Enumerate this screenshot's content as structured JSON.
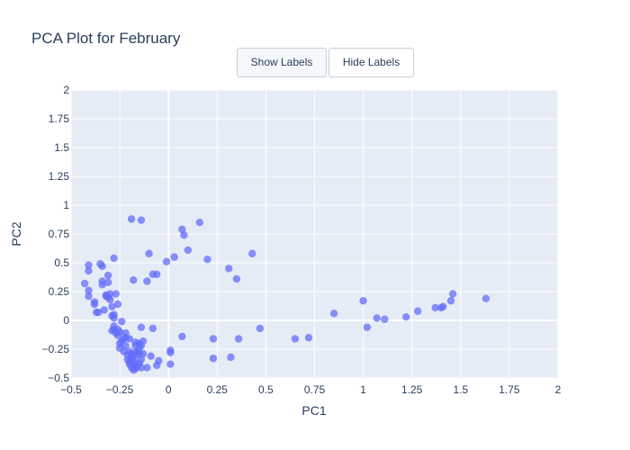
{
  "buttons": {
    "show_labels": "Show Labels",
    "hide_labels": "Hide Labels"
  },
  "colors": {
    "plot_background": "#e5ecf6",
    "grid": "#ffffff",
    "marker": "#636efa",
    "text": "#2a3f5f"
  },
  "chart_data": {
    "type": "scatter",
    "title": "PCA Plot for February",
    "xlabel": "PC1",
    "ylabel": "PC2",
    "xlim": [
      -0.5,
      2
    ],
    "ylim": [
      -0.5,
      2
    ],
    "grid": true,
    "x_ticks": [
      "−0.5",
      "−0.25",
      "0",
      "0.25",
      "0.5",
      "0.75",
      "1",
      "1.25",
      "1.5",
      "1.75",
      "2"
    ],
    "y_ticks": [
      "−0.5",
      "−0.25",
      "0",
      "0.25",
      "0.5",
      "0.75",
      "1",
      "1.25",
      "1.5",
      "1.75",
      "2"
    ],
    "series": [
      {
        "points": [
          [
            -0.43,
            0.32
          ],
          [
            -0.41,
            0.26
          ],
          [
            -0.41,
            0.21
          ],
          [
            -0.41,
            0.43
          ],
          [
            -0.41,
            0.48
          ],
          [
            -0.38,
            0.16
          ],
          [
            -0.38,
            0.14
          ],
          [
            -0.37,
            0.07
          ],
          [
            -0.36,
            0.07
          ],
          [
            -0.35,
            0.49
          ],
          [
            -0.34,
            0.47
          ],
          [
            -0.34,
            0.34
          ],
          [
            -0.34,
            0.31
          ],
          [
            -0.33,
            0.09
          ],
          [
            -0.32,
            0.21
          ],
          [
            -0.32,
            0.22
          ],
          [
            -0.31,
            0.39
          ],
          [
            -0.31,
            0.33
          ],
          [
            -0.31,
            0.2
          ],
          [
            -0.3,
            0.18
          ],
          [
            -0.3,
            0.23
          ],
          [
            -0.29,
            0.12
          ],
          [
            -0.29,
            0.04
          ],
          [
            -0.29,
            -0.09
          ],
          [
            -0.28,
            0.54
          ],
          [
            -0.28,
            0.05
          ],
          [
            -0.28,
            0.02
          ],
          [
            -0.28,
            -0.05
          ],
          [
            -0.28,
            -0.08
          ],
          [
            -0.27,
            0.23
          ],
          [
            -0.27,
            -0.11
          ],
          [
            -0.26,
            0.14
          ],
          [
            -0.26,
            -0.08
          ],
          [
            -0.26,
            -0.13
          ],
          [
            -0.25,
            -0.1
          ],
          [
            -0.25,
            -0.2
          ],
          [
            -0.25,
            -0.24
          ],
          [
            -0.24,
            -0.01
          ],
          [
            -0.24,
            -0.18
          ],
          [
            -0.23,
            -0.16
          ],
          [
            -0.23,
            -0.27
          ],
          [
            -0.22,
            -0.11
          ],
          [
            -0.22,
            -0.15
          ],
          [
            -0.22,
            -0.22
          ],
          [
            -0.21,
            -0.3
          ],
          [
            -0.21,
            -0.34
          ],
          [
            -0.2,
            -0.36
          ],
          [
            -0.2,
            -0.38
          ],
          [
            -0.2,
            -0.16
          ],
          [
            -0.2,
            -0.27
          ],
          [
            -0.19,
            -0.29
          ],
          [
            -0.19,
            -0.31
          ],
          [
            -0.19,
            -0.33
          ],
          [
            -0.19,
            -0.41
          ],
          [
            -0.18,
            -0.35
          ],
          [
            -0.18,
            -0.39
          ],
          [
            -0.18,
            -0.43
          ],
          [
            -0.17,
            -0.38
          ],
          [
            -0.17,
            -0.42
          ],
          [
            -0.17,
            -0.31
          ],
          [
            -0.17,
            -0.28
          ],
          [
            -0.17,
            -0.22
          ],
          [
            -0.17,
            -0.19
          ],
          [
            -0.16,
            -0.4
          ],
          [
            -0.16,
            -0.27
          ],
          [
            -0.15,
            -0.37
          ],
          [
            -0.15,
            -0.29
          ],
          [
            -0.15,
            -0.24
          ],
          [
            -0.15,
            -0.2
          ],
          [
            -0.14,
            -0.41
          ],
          [
            -0.14,
            -0.34
          ],
          [
            -0.14,
            -0.22
          ],
          [
            -0.14,
            -0.06
          ],
          [
            -0.13,
            -0.18
          ],
          [
            -0.13,
            -0.29
          ],
          [
            -0.19,
            0.88
          ],
          [
            -0.14,
            0.87
          ],
          [
            -0.18,
            0.35
          ],
          [
            -0.11,
            0.34
          ],
          [
            -0.1,
            0.58
          ],
          [
            -0.08,
            0.4
          ],
          [
            -0.06,
            0.4
          ],
          [
            -0.11,
            -0.41
          ],
          [
            -0.09,
            -0.31
          ],
          [
            -0.06,
            -0.39
          ],
          [
            -0.05,
            -0.35
          ],
          [
            -0.08,
            -0.07
          ],
          [
            -0.01,
            0.51
          ],
          [
            0.01,
            -0.28
          ],
          [
            0.01,
            -0.26
          ],
          [
            0.01,
            -0.38
          ],
          [
            0.03,
            0.55
          ],
          [
            0.07,
            0.79
          ],
          [
            0.08,
            0.74
          ],
          [
            0.1,
            0.61
          ],
          [
            0.16,
            0.85
          ],
          [
            0.07,
            -0.14
          ],
          [
            0.2,
            0.53
          ],
          [
            0.23,
            -0.16
          ],
          [
            0.23,
            -0.33
          ],
          [
            0.31,
            0.45
          ],
          [
            0.32,
            -0.32
          ],
          [
            0.35,
            0.36
          ],
          [
            0.36,
            -0.16
          ],
          [
            0.43,
            0.58
          ],
          [
            0.47,
            -0.07
          ],
          [
            0.65,
            -0.16
          ],
          [
            0.72,
            -0.15
          ],
          [
            0.85,
            0.06
          ],
          [
            1.0,
            0.17
          ],
          [
            1.02,
            -0.06
          ],
          [
            1.07,
            0.02
          ],
          [
            1.11,
            0.01
          ],
          [
            1.22,
            0.03
          ],
          [
            1.28,
            0.08
          ],
          [
            1.37,
            0.11
          ],
          [
            1.4,
            0.11
          ],
          [
            1.41,
            0.12
          ],
          [
            1.45,
            0.17
          ],
          [
            1.46,
            0.23
          ],
          [
            1.63,
            0.19
          ]
        ]
      }
    ]
  }
}
